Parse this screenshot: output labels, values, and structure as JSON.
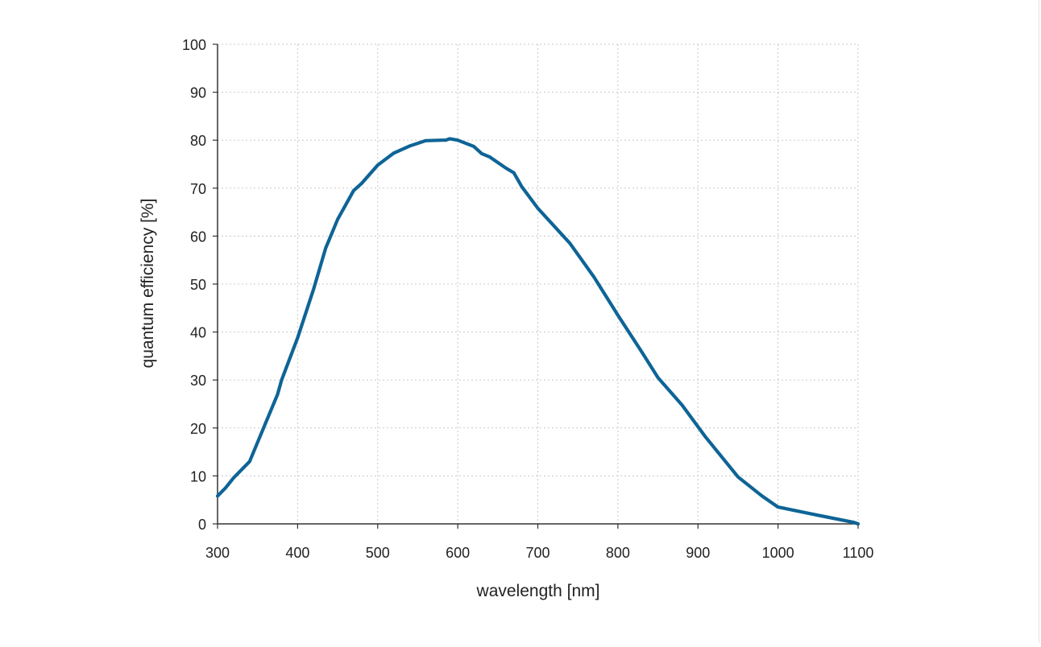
{
  "chart_data": {
    "type": "line",
    "title": "",
    "xlabel": "wavelength [nm]",
    "ylabel": "quantum efficiency [%]",
    "xlim": [
      300,
      1100
    ],
    "ylim": [
      0,
      100
    ],
    "x_ticks": [
      300,
      400,
      500,
      600,
      700,
      800,
      900,
      1000,
      1100
    ],
    "y_ticks": [
      0,
      10,
      20,
      30,
      40,
      50,
      60,
      70,
      80,
      90,
      100
    ],
    "grid": "dotted",
    "line_color": "#0e6496",
    "series": [
      {
        "x": [
          300,
          310,
          320,
          340,
          360,
          375,
          380,
          400,
          420,
          435,
          450,
          470,
          480,
          500,
          520,
          540,
          560,
          580,
          585,
          590,
          600,
          620,
          630,
          640,
          660,
          670,
          680,
          700,
          740,
          770,
          800,
          830,
          850,
          880,
          910,
          950,
          980,
          1000,
          1050,
          1095,
          1100
        ],
        "y": [
          5.8,
          7.5,
          9.6,
          13.0,
          21.0,
          27.0,
          30.0,
          38.8,
          49.0,
          57.5,
          63.5,
          69.5,
          71.0,
          74.8,
          77.3,
          78.8,
          79.9,
          80.0,
          80.0,
          80.3,
          80.0,
          78.7,
          77.2,
          76.5,
          74.2,
          73.2,
          70.3,
          65.8,
          58.5,
          51.5,
          43.5,
          35.8,
          30.5,
          24.8,
          18.0,
          9.8,
          5.8,
          3.5,
          1.8,
          0.3,
          0.0
        ]
      }
    ]
  }
}
